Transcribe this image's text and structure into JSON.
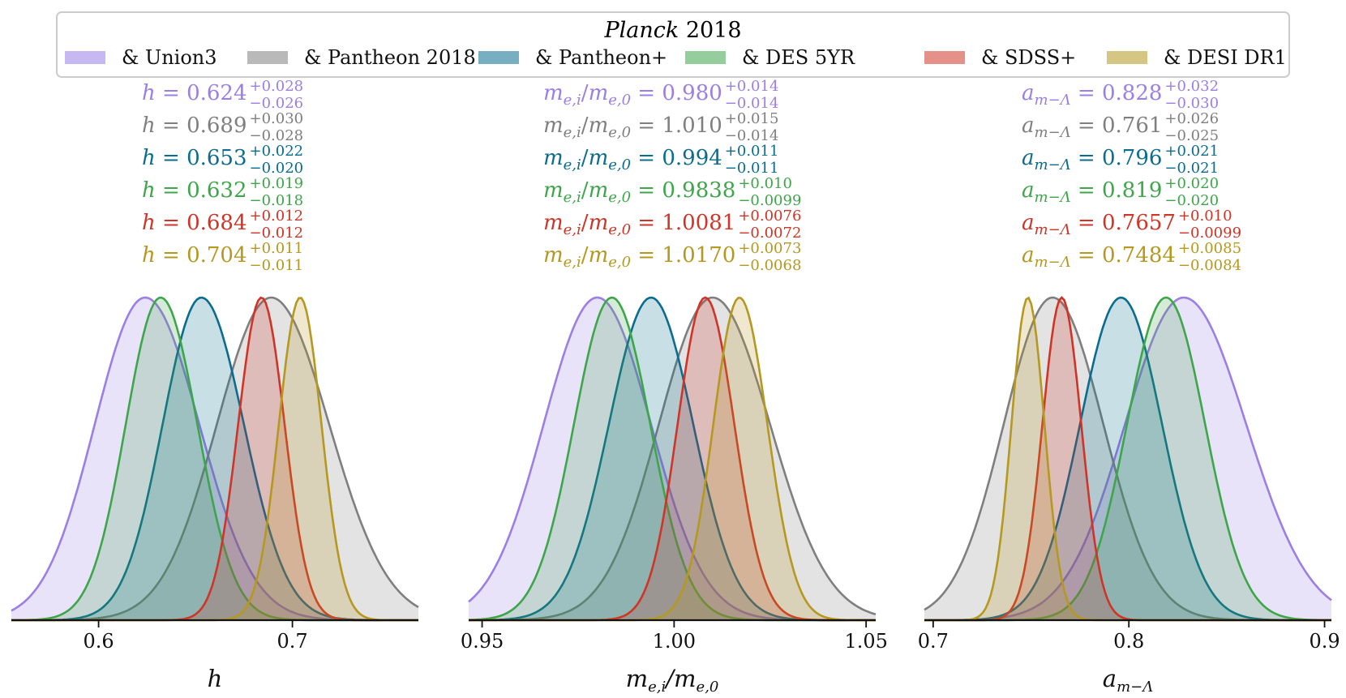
{
  "chart_data": {
    "type": "area",
    "legend": {
      "title_italic": "Planck",
      "title_rest": " 2018",
      "placement": "top",
      "entries": [
        {
          "label": "& Union3",
          "color": "#9b7ee6"
        },
        {
          "label": "& Pantheon 2018",
          "color": "#7f7f7f"
        },
        {
          "label": "& Pantheon+",
          "color": "#0a6c8f"
        },
        {
          "label": "& DES 5YR",
          "color": "#3ea64a"
        },
        {
          "label": "& SDSS+",
          "color": "#cf3427"
        },
        {
          "label": "& DESI DR1",
          "color": "#b5981f"
        }
      ]
    },
    "panels": [
      {
        "xlabel": "h",
        "xlim": [
          0.555,
          0.765
        ],
        "ticks": [
          0.6,
          0.7
        ],
        "tick_labels": [
          "0.6",
          "0.7"
        ],
        "annotations": [
          {
            "symbol": "h",
            "value": "0.624",
            "plus": "+0.028",
            "minus": "−0.026"
          },
          {
            "symbol": "h",
            "value": "0.689",
            "plus": "+0.030",
            "minus": "−0.028"
          },
          {
            "symbol": "h",
            "value": "0.653",
            "plus": "+0.022",
            "minus": "−0.020"
          },
          {
            "symbol": "h",
            "value": "0.632",
            "plus": "+0.019",
            "minus": "−0.018"
          },
          {
            "symbol": "h",
            "value": "0.684",
            "plus": "+0.012",
            "minus": "−0.012"
          },
          {
            "symbol": "h",
            "value": "0.704",
            "plus": "+0.011",
            "minus": "−0.011"
          }
        ],
        "series": [
          {
            "mean": 0.624,
            "sigma_minus": 0.026,
            "sigma_plus": 0.028
          },
          {
            "mean": 0.689,
            "sigma_minus": 0.028,
            "sigma_plus": 0.03
          },
          {
            "mean": 0.653,
            "sigma_minus": 0.02,
            "sigma_plus": 0.022
          },
          {
            "mean": 0.632,
            "sigma_minus": 0.018,
            "sigma_plus": 0.019
          },
          {
            "mean": 0.684,
            "sigma_minus": 0.012,
            "sigma_plus": 0.012
          },
          {
            "mean": 0.704,
            "sigma_minus": 0.011,
            "sigma_plus": 0.011
          }
        ]
      },
      {
        "xlabel": "me,i/me,0",
        "xlim": [
          0.9465,
          1.0525
        ],
        "ticks": [
          0.95,
          1.0,
          1.05
        ],
        "tick_labels": [
          "0.95",
          "1.00",
          "1.05"
        ],
        "annotations": [
          {
            "symbol": "me,i/me,0",
            "value": "0.980",
            "plus": "+0.014",
            "minus": "−0.014"
          },
          {
            "symbol": "me,i/me,0",
            "value": "1.010",
            "plus": "+0.015",
            "minus": "−0.014"
          },
          {
            "symbol": "me,i/me,0",
            "value": "0.994",
            "plus": "+0.011",
            "minus": "−0.011"
          },
          {
            "symbol": "me,i/me,0",
            "value": "0.9838",
            "plus": "+0.010",
            "minus": "−0.0099"
          },
          {
            "symbol": "me,i/me,0",
            "value": "1.0081",
            "plus": "+0.0076",
            "minus": "−0.0072"
          },
          {
            "symbol": "me,i/me,0",
            "value": "1.0170",
            "plus": "+0.0073",
            "minus": "−0.0068"
          }
        ],
        "series": [
          {
            "mean": 0.98,
            "sigma_minus": 0.014,
            "sigma_plus": 0.014
          },
          {
            "mean": 1.01,
            "sigma_minus": 0.014,
            "sigma_plus": 0.015
          },
          {
            "mean": 0.994,
            "sigma_minus": 0.011,
            "sigma_plus": 0.011
          },
          {
            "mean": 0.9838,
            "sigma_minus": 0.0099,
            "sigma_plus": 0.01
          },
          {
            "mean": 1.0081,
            "sigma_minus": 0.0072,
            "sigma_plus": 0.0076
          },
          {
            "mean": 1.017,
            "sigma_minus": 0.0068,
            "sigma_plus": 0.0073
          }
        ]
      },
      {
        "xlabel": "am−Λ",
        "xlim": [
          0.6955,
          0.9035
        ],
        "ticks": [
          0.7,
          0.8,
          0.9
        ],
        "tick_labels": [
          "0.7",
          "0.8",
          "0.9"
        ],
        "annotations": [
          {
            "symbol": "am−Λ",
            "value": "0.828",
            "plus": "+0.032",
            "minus": "−0.030"
          },
          {
            "symbol": "am−Λ",
            "value": "0.761",
            "plus": "+0.026",
            "minus": "−0.025"
          },
          {
            "symbol": "am−Λ",
            "value": "0.796",
            "plus": "+0.021",
            "minus": "−0.021"
          },
          {
            "symbol": "am−Λ",
            "value": "0.819",
            "plus": "+0.020",
            "minus": "−0.020"
          },
          {
            "symbol": "am−Λ",
            "value": "0.7657",
            "plus": "+0.010",
            "minus": "−0.0099"
          },
          {
            "symbol": "am−Λ",
            "value": "0.7484",
            "plus": "+0.0085",
            "minus": "−0.0084"
          }
        ],
        "series": [
          {
            "mean": 0.828,
            "sigma_minus": 0.03,
            "sigma_plus": 0.032
          },
          {
            "mean": 0.761,
            "sigma_minus": 0.025,
            "sigma_plus": 0.026
          },
          {
            "mean": 0.796,
            "sigma_minus": 0.021,
            "sigma_plus": 0.021
          },
          {
            "mean": 0.819,
            "sigma_minus": 0.02,
            "sigma_plus": 0.02
          },
          {
            "mean": 0.7657,
            "sigma_minus": 0.0099,
            "sigma_plus": 0.01
          },
          {
            "mean": 0.7484,
            "sigma_minus": 0.0084,
            "sigma_plus": 0.0085
          }
        ]
      }
    ]
  }
}
